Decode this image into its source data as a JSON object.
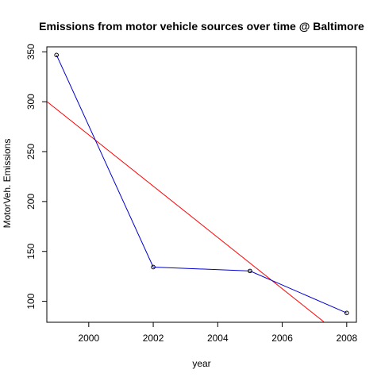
{
  "chart_data": {
    "type": "line",
    "title": "Emissions from motor vehicle sources over time @ Baltimore",
    "xlabel": "year",
    "ylabel": "MotorVeh. Emissions",
    "xlim": [
      1998.7,
      2008.3
    ],
    "ylim": [
      79,
      355
    ],
    "x_ticks": [
      2000,
      2002,
      2004,
      2006,
      2008
    ],
    "y_ticks": [
      100,
      150,
      200,
      250,
      300,
      350
    ],
    "grid": false,
    "legend": "none",
    "series": [
      {
        "color": "#0000cc",
        "marker": "open-circle",
        "x": [
          1999,
          2002,
          2005,
          2008
        ],
        "y": [
          346.8,
          134.3,
          130.4,
          88.3
        ]
      }
    ],
    "trend_line": {
      "color": "#ff0000",
      "slope": -25.7,
      "intercept_at_1999": 292.5
    }
  }
}
